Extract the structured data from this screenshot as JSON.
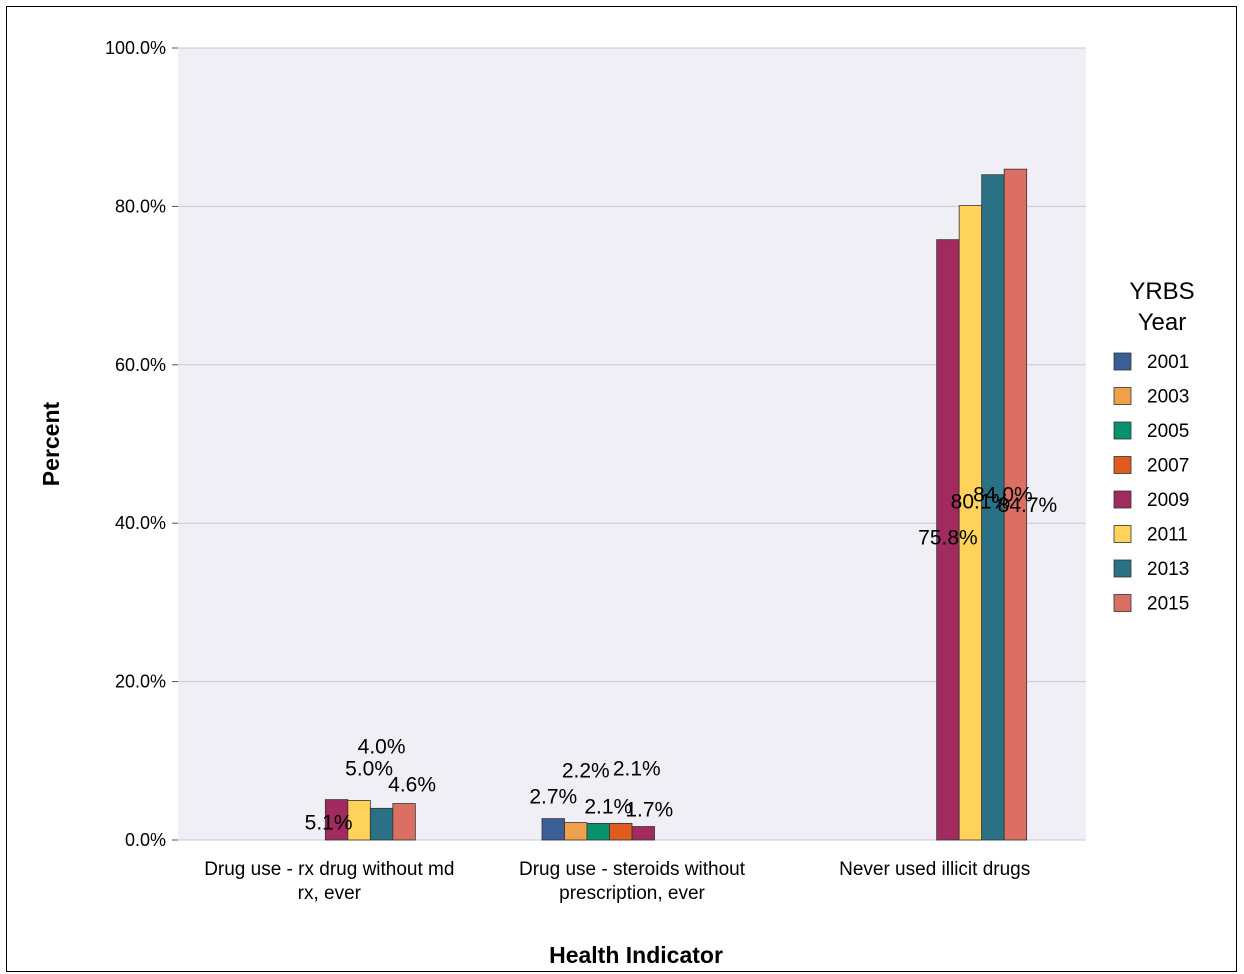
{
  "chart_data": {
    "type": "bar",
    "xlabel": "Health Indicator",
    "ylabel": "Percent",
    "ylim": [
      0,
      100
    ],
    "yticks": [
      "0.0%",
      "20.0%",
      "40.0%",
      "60.0%",
      "80.0%",
      "100.0%"
    ],
    "grid": true,
    "legend_title": [
      "YRBS",
      "Year"
    ],
    "legend_position": "right",
    "categories": [
      [
        "Drug use - rx drug without md",
        "rx, ever"
      ],
      [
        "Drug use - steroids without",
        "prescription, ever"
      ],
      [
        "Never used illicit drugs"
      ]
    ],
    "series": [
      {
        "name": "2001",
        "color": "#3a5f94",
        "values": [
          null,
          2.7,
          null
        ]
      },
      {
        "name": "2003",
        "color": "#f0a04b",
        "values": [
          null,
          2.2,
          null
        ]
      },
      {
        "name": "2005",
        "color": "#07916d",
        "values": [
          null,
          2.1,
          null
        ]
      },
      {
        "name": "2007",
        "color": "#df5b1f",
        "values": [
          null,
          2.1,
          null
        ]
      },
      {
        "name": "2009",
        "color": "#a12a5e",
        "values": [
          5.1,
          1.7,
          75.8
        ]
      },
      {
        "name": "2011",
        "color": "#ffd35a",
        "values": [
          5.0,
          null,
          80.1
        ]
      },
      {
        "name": "2013",
        "color": "#2b7186",
        "values": [
          4.0,
          null,
          84.0
        ]
      },
      {
        "name": "2015",
        "color": "#dc6f64",
        "values": [
          4.6,
          null,
          84.7
        ]
      }
    ]
  }
}
